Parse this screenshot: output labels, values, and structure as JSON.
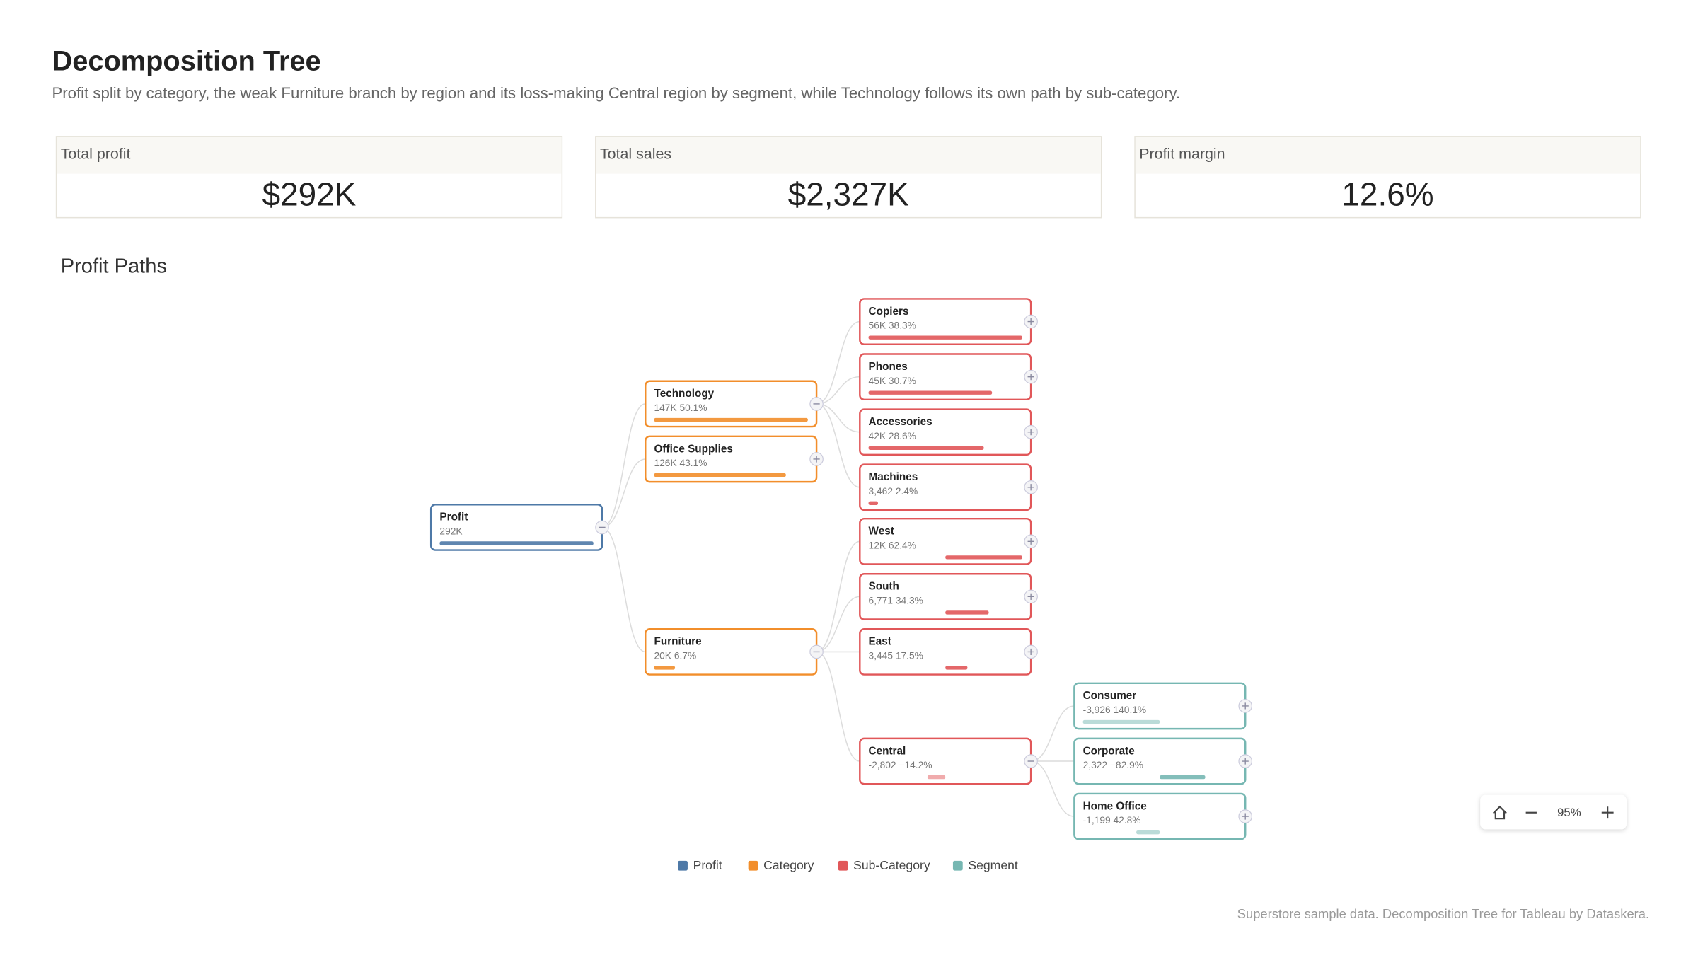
{
  "header": {
    "title": "Decomposition Tree",
    "subtitle": "Profit split by category, the weak Furniture branch by region and its loss-making Central region by segment, while Technology follows its own path by sub-category."
  },
  "kpis": [
    {
      "label": "Total profit",
      "value": "$292K"
    },
    {
      "label": "Total sales",
      "value": "$2,327K"
    },
    {
      "label": "Profit margin",
      "value": "12.6%"
    }
  ],
  "tree": {
    "title": "Profit Paths",
    "root": {
      "name": "Profit",
      "value": 292000,
      "value_label": "292K",
      "children": [
        {
          "name": "Technology",
          "value": 147000,
          "value_label": "147K",
          "share": "50.1%",
          "children": [
            {
              "name": "Copiers",
              "value": 56000,
              "value_label": "56K",
              "share": "38.3%",
              "children": []
            },
            {
              "name": "Phones",
              "value": 45000,
              "value_label": "45K",
              "share": "30.7%",
              "children": []
            },
            {
              "name": "Accessories",
              "value": 42000,
              "value_label": "42K",
              "share": "28.6%",
              "children": []
            },
            {
              "name": "Machines",
              "value": 3462,
              "value_label": "3,462",
              "share": "2.4%",
              "children": []
            }
          ]
        },
        {
          "name": "Office Supplies",
          "value": 126000,
          "value_label": "126K",
          "share": "43.1%",
          "children": []
        },
        {
          "name": "Furniture",
          "value": 20000,
          "value_label": "20K",
          "share": "6.7%",
          "children": [
            {
              "name": "West",
              "value": 12000,
              "value_label": "12K",
              "share": "62.4%",
              "children": []
            },
            {
              "name": "South",
              "value": 6771,
              "value_label": "6,771",
              "share": "34.3%",
              "children": []
            },
            {
              "name": "East",
              "value": 3445,
              "value_label": "3,445",
              "share": "17.5%",
              "children": []
            },
            {
              "name": "Central",
              "value": -2802,
              "value_label": "-2,802",
              "share": "−14.2%",
              "children": [
                {
                  "name": "Consumer",
                  "value": -3926,
                  "value_label": "-3,926",
                  "share": "140.1%",
                  "children": []
                },
                {
                  "name": "Corporate",
                  "value": 2322,
                  "value_label": "2,322",
                  "share": "−82.9%",
                  "children": []
                },
                {
                  "name": "Home Office",
                  "value": -1199,
                  "value_label": "-1,199",
                  "share": "42.8%",
                  "children": []
                }
              ]
            }
          ]
        }
      ]
    }
  },
  "legend": [
    {
      "name": "Profit",
      "color": "#4e79a7"
    },
    {
      "name": "Category",
      "color": "#f28e2b"
    },
    {
      "name": "Sub-Category",
      "color": "#e15759"
    },
    {
      "name": "Segment",
      "color": "#76b7b2"
    }
  ],
  "zoom": {
    "level": "95%"
  },
  "footer": "Superstore sample data. Decomposition Tree for Tableau by Dataskera."
}
